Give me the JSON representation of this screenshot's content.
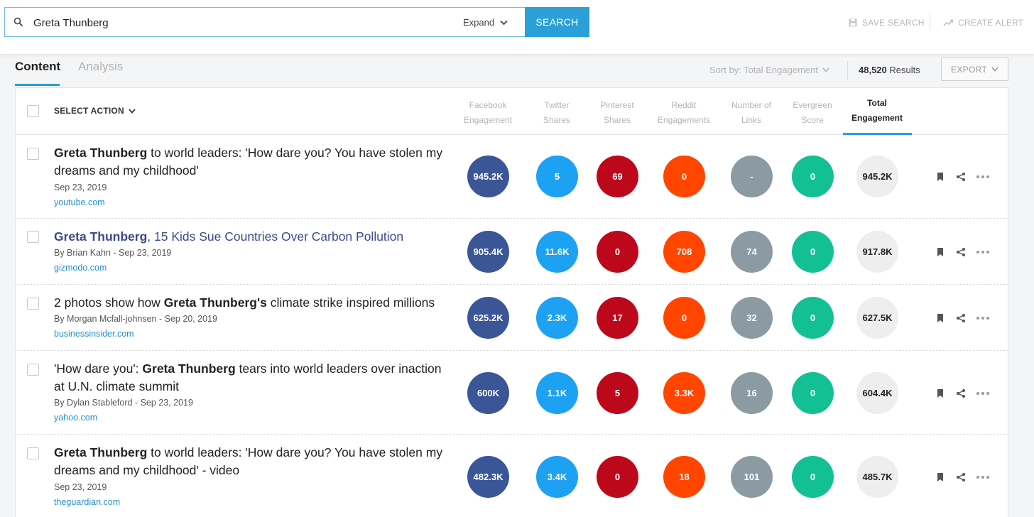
{
  "search": {
    "query": "Greta Thunberg",
    "expand_label": "Expand",
    "button_label": "SEARCH"
  },
  "toolbar": {
    "save_search": "SAVE SEARCH",
    "create_alert": "CREATE ALERT"
  },
  "tabs": [
    {
      "label": "Content",
      "active": true
    },
    {
      "label": "Analysis",
      "active": false
    }
  ],
  "sort": {
    "label": "Sort by: Total Engagement"
  },
  "results": {
    "count": "48,520",
    "label": "Results"
  },
  "export": {
    "label": "EXPORT"
  },
  "table": {
    "select_action": "SELECT ACTION",
    "columns": [
      {
        "line1": "Facebook",
        "line2": "Engagement"
      },
      {
        "line1": "Twitter",
        "line2": "Shares"
      },
      {
        "line1": "Pinterest",
        "line2": "Shares"
      },
      {
        "line1": "Reddit",
        "line2": "Engagements"
      },
      {
        "line1": "Number of",
        "line2": "Links"
      },
      {
        "line1": "Evergreen",
        "line2": "Score"
      },
      {
        "line1": "Total",
        "line2": "Engagement"
      }
    ],
    "rows": [
      {
        "title_bold": "Greta Thunberg",
        "title_rest": " to world leaders: 'How dare you? You have stolen my dreams and my childhood'",
        "meta": "Sep 23, 2019",
        "domain": "youtube.com",
        "facebook": "945.2K",
        "twitter": "5",
        "pinterest": "69",
        "reddit": "0",
        "links": "-",
        "evergreen": "0",
        "total": "945.2K"
      },
      {
        "title_bold": "Greta Thunberg",
        "title_rest": ", 15 Kids Sue Countries Over Carbon Pollution",
        "meta": "By Brian Kahn - Sep 23, 2019",
        "domain": "gizmodo.com",
        "facebook": "905.4K",
        "twitter": "11.6K",
        "pinterest": "0",
        "reddit": "708",
        "links": "74",
        "evergreen": "0",
        "total": "917.8K"
      },
      {
        "title_pre": "2 photos show how ",
        "title_bold": "Greta Thunberg's",
        "title_rest": " climate strike inspired millions",
        "meta": "By Morgan Mcfall-johnsen - Sep 20, 2019",
        "domain": "businessinsider.com",
        "facebook": "625.2K",
        "twitter": "2.3K",
        "pinterest": "17",
        "reddit": "0",
        "links": "32",
        "evergreen": "0",
        "total": "627.5K"
      },
      {
        "title_pre": "'How dare you': ",
        "title_bold": "Greta Thunberg",
        "title_rest": " tears into world leaders over inaction at U.N. climate summit",
        "meta": "By Dylan Stableford - Sep 23, 2019",
        "domain": "yahoo.com",
        "facebook": "600K",
        "twitter": "1.1K",
        "pinterest": "5",
        "reddit": "3.3K",
        "links": "16",
        "evergreen": "0",
        "total": "604.4K"
      },
      {
        "title_bold": "Greta Thunberg",
        "title_rest": " to world leaders: 'How dare you? You have stolen my dreams and my childhood' - video",
        "meta": "Sep 23, 2019",
        "domain": "theguardian.com",
        "facebook": "482.3K",
        "twitter": "3.4K",
        "pinterest": "0",
        "reddit": "18",
        "links": "101",
        "evergreen": "0",
        "total": "485.7K"
      }
    ]
  }
}
